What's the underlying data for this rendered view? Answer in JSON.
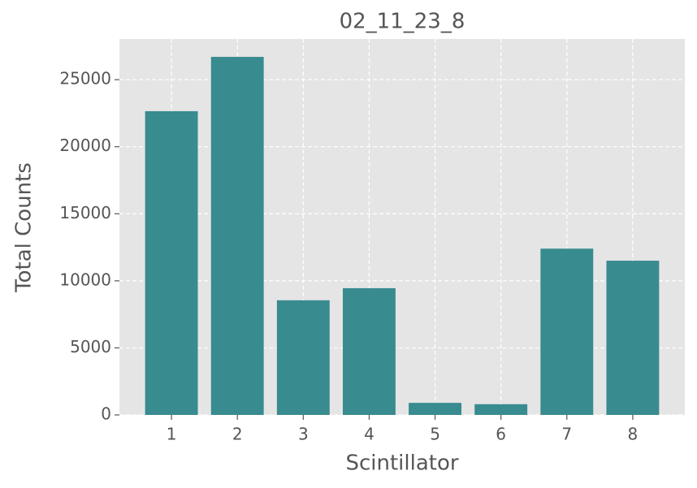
{
  "chart_data": {
    "type": "bar",
    "title": "02_11_23_8",
    "x_label": "Scintillator",
    "y_label": "Total Counts",
    "x": [
      1,
      2,
      3,
      4,
      5,
      6,
      7,
      8
    ],
    "values": [
      22650,
      26700,
      8550,
      9450,
      900,
      800,
      12400,
      11500
    ],
    "color": "#388b8f",
    "xlim": [
      0.21,
      8.79
    ],
    "xticks": [
      1,
      2,
      3,
      4,
      5,
      6,
      7,
      8
    ],
    "ylim": [
      0,
      28035
    ],
    "yticks": [
      0,
      5000,
      10000,
      15000,
      20000,
      25000
    ],
    "grid": true
  }
}
